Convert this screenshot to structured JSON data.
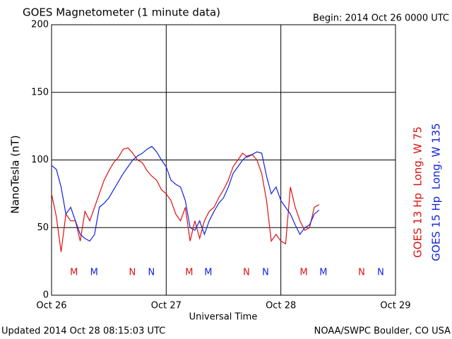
{
  "chart_data": {
    "type": "line",
    "title": "GOES Magnetometer (1 minute data)",
    "subtitle": "Begin:  2014 Oct 26 0000 UTC",
    "ylabel": "NanoTesla (nT)",
    "xlabel": "Universal Time",
    "footer_left": "Updated 2014 Oct 28 08:15:03 UTC",
    "footer_right": "NOAA/SWPC Boulder, CO USA",
    "grid": true,
    "xlim": [
      0,
      72
    ],
    "xticks": [
      {
        "value": 0,
        "label": "Oct 26"
      },
      {
        "value": 24,
        "label": "Oct 27"
      },
      {
        "value": 48,
        "label": "Oct 28"
      },
      {
        "value": 72,
        "label": "Oct 29"
      }
    ],
    "ylim": [
      0,
      200
    ],
    "yticks": [
      0,
      50,
      100,
      150,
      200
    ],
    "x": [
      0,
      1,
      2,
      3,
      4,
      5,
      6,
      7,
      8,
      9,
      10,
      11,
      12,
      13,
      14,
      15,
      16,
      17,
      18,
      19,
      20,
      21,
      22,
      23,
      24,
      25,
      26,
      27,
      28,
      29,
      30,
      31,
      32,
      33,
      34,
      35,
      36,
      37,
      38,
      39,
      40,
      41,
      42,
      43,
      44,
      45,
      46,
      47,
      48,
      49,
      50,
      51,
      52,
      53,
      54,
      55,
      56
    ],
    "series": [
      {
        "name": "GOES 13 Hp  Long. W 75",
        "color": "#dd1111",
        "values": [
          75,
          58,
          32,
          60,
          55,
          55,
          40,
          62,
          55,
          65,
          75,
          85,
          92,
          98,
          102,
          108,
          109,
          105,
          100,
          98,
          92,
          88,
          85,
          78,
          75,
          70,
          60,
          55,
          65,
          40,
          55,
          42,
          55,
          62,
          65,
          72,
          78,
          85,
          95,
          100,
          105,
          102,
          104,
          100,
          90,
          70,
          40,
          45,
          40,
          38,
          80,
          65,
          55,
          48,
          50,
          65,
          67
        ]
      },
      {
        "name": "GOES 15 Hp  Long. W 135",
        "color": "#1122dd",
        "values": [
          96,
          93,
          80,
          60,
          65,
          55,
          45,
          42,
          40,
          45,
          65,
          68,
          72,
          78,
          84,
          90,
          95,
          100,
          103,
          105,
          108,
          110,
          106,
          100,
          95,
          85,
          82,
          80,
          70,
          50,
          48,
          55,
          45,
          55,
          62,
          68,
          72,
          80,
          90,
          95,
          100,
          103,
          104,
          106,
          105,
          88,
          75,
          80,
          70,
          65,
          60,
          52,
          45,
          50,
          52,
          60,
          63
        ]
      }
    ],
    "annotations": [
      {
        "text": "M",
        "x": 4.7,
        "color": "#dd1111"
      },
      {
        "text": "M",
        "x": 8.9,
        "color": "#1122dd"
      },
      {
        "text": "N",
        "x": 16.9,
        "color": "#dd1111"
      },
      {
        "text": "N",
        "x": 20.9,
        "color": "#1122dd"
      },
      {
        "text": "M",
        "x": 28.8,
        "color": "#dd1111"
      },
      {
        "text": "M",
        "x": 32.8,
        "color": "#1122dd"
      },
      {
        "text": "N",
        "x": 40.8,
        "color": "#dd1111"
      },
      {
        "text": "N",
        "x": 44.8,
        "color": "#1122dd"
      },
      {
        "text": "M",
        "x": 52.8,
        "color": "#dd1111"
      },
      {
        "text": "M",
        "x": 56.9,
        "color": "#1122dd"
      },
      {
        "text": "N",
        "x": 64.9,
        "color": "#dd1111"
      },
      {
        "text": "N",
        "x": 68.9,
        "color": "#1122dd"
      }
    ]
  }
}
